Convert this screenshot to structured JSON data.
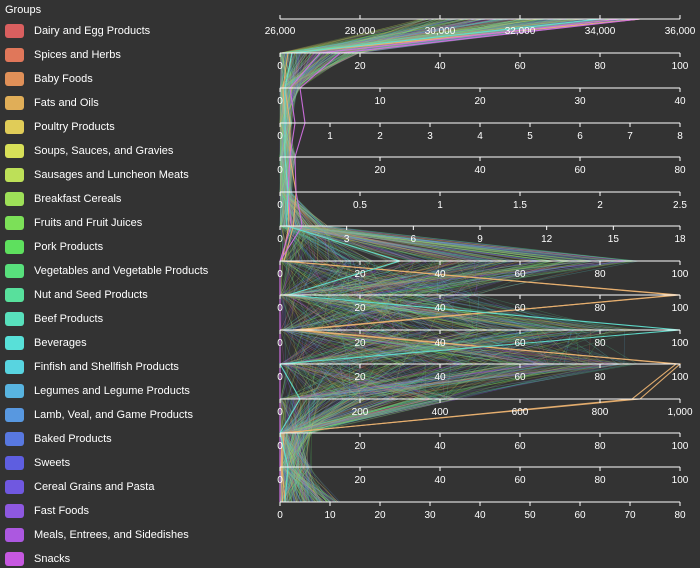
{
  "legend": {
    "title": "Groups",
    "items": [
      {
        "label": "Dairy and Egg Products",
        "color": "#d95f5f"
      },
      {
        "label": "Spices and Herbs",
        "color": "#e0775a"
      },
      {
        "label": "Baby Foods",
        "color": "#e09058"
      },
      {
        "label": "Fats and Oils",
        "color": "#e0ae58"
      },
      {
        "label": "Poultry Products",
        "color": "#e0cc58"
      },
      {
        "label": "Soups, Sauces, and Gravies",
        "color": "#d8e058"
      },
      {
        "label": "Sausages and Luncheon Meats",
        "color": "#bde058"
      },
      {
        "label": "Breakfast Cereals",
        "color": "#9ee058"
      },
      {
        "label": "Fruits and Fruit Juices",
        "color": "#7ce058"
      },
      {
        "label": "Pork Products",
        "color": "#5ee05e"
      },
      {
        "label": "Vegetables and Vegetable Products",
        "color": "#58e07c"
      },
      {
        "label": "Nut and Seed Products",
        "color": "#58e09c"
      },
      {
        "label": "Beef Products",
        "color": "#58e0bc"
      },
      {
        "label": "Beverages",
        "color": "#58e0d8"
      },
      {
        "label": "Finfish and Shellfish Products",
        "color": "#58d4e0"
      },
      {
        "label": "Legumes and Legume Products",
        "color": "#58b4e0"
      },
      {
        "label": "Lamb, Veal, and Game Products",
        "color": "#5898e0"
      },
      {
        "label": "Baked Products",
        "color": "#5878e0"
      },
      {
        "label": "Sweets",
        "color": "#5e5ee0"
      },
      {
        "label": "Cereal Grains and Pasta",
        "color": "#7058e0"
      },
      {
        "label": "Fast Foods",
        "color": "#8e58e0"
      },
      {
        "label": "Meals, Entrees, and Sidedishes",
        "color": "#ac58e0"
      },
      {
        "label": "Snacks",
        "color": "#c658e0"
      }
    ]
  },
  "chart_data": {
    "type": "parallel_coordinates",
    "orientation": "horizontal_axes",
    "axes": [
      {
        "domain": [
          26000,
          36000
        ],
        "ticks": [
          26000,
          28000,
          30000,
          32000,
          34000,
          36000
        ],
        "tick_labels": [
          "26,000",
          "28,000",
          "30,000",
          "32,000",
          "34,000",
          "36,000"
        ]
      },
      {
        "domain": [
          0,
          100
        ],
        "ticks": [
          0,
          20,
          40,
          60,
          80,
          100
        ],
        "tick_labels": [
          "0",
          "20",
          "40",
          "60",
          "80",
          "100"
        ]
      },
      {
        "domain": [
          0,
          40
        ],
        "ticks": [
          0,
          10,
          20,
          30,
          40
        ],
        "tick_labels": [
          "0",
          "10",
          "20",
          "30",
          "40"
        ]
      },
      {
        "domain": [
          0,
          8
        ],
        "ticks": [
          0,
          1,
          2,
          3,
          4,
          5,
          6,
          7,
          8
        ],
        "tick_labels": [
          "0",
          "1",
          "2",
          "3",
          "4",
          "5",
          "6",
          "7",
          "8"
        ]
      },
      {
        "domain": [
          0,
          80
        ],
        "ticks": [
          0,
          20,
          40,
          60,
          80
        ],
        "tick_labels": [
          "0",
          "20",
          "40",
          "60",
          "80"
        ]
      },
      {
        "domain": [
          0,
          2.5
        ],
        "ticks": [
          0,
          0.5,
          1,
          1.5,
          2,
          2.5
        ],
        "tick_labels": [
          "0",
          "0.5",
          "1",
          "1.5",
          "2",
          "2.5"
        ]
      },
      {
        "domain": [
          0,
          18
        ],
        "ticks": [
          0,
          3,
          6,
          9,
          12,
          15,
          18
        ],
        "tick_labels": [
          "0",
          "3",
          "6",
          "9",
          "12",
          "15",
          "18"
        ]
      },
      {
        "domain": [
          0,
          100
        ],
        "ticks": [
          0,
          20,
          40,
          60,
          80,
          100
        ],
        "tick_labels": [
          "0",
          "20",
          "40",
          "60",
          "80",
          "100"
        ]
      },
      {
        "domain": [
          0,
          100
        ],
        "ticks": [
          0,
          20,
          40,
          60,
          80,
          100
        ],
        "tick_labels": [
          "0",
          "20",
          "40",
          "60",
          "80",
          "100"
        ]
      },
      {
        "domain": [
          0,
          100
        ],
        "ticks": [
          0,
          20,
          40,
          60,
          80,
          100
        ],
        "tick_labels": [
          "0",
          "20",
          "40",
          "60",
          "80",
          "100"
        ]
      },
      {
        "domain": [
          0,
          100
        ],
        "ticks": [
          0,
          20,
          40,
          60,
          80,
          100
        ],
        "tick_labels": [
          "0",
          "20",
          "40",
          "60",
          "80",
          "100"
        ]
      },
      {
        "domain": [
          0,
          1000
        ],
        "ticks": [
          0,
          200,
          400,
          600,
          800,
          1000
        ],
        "tick_labels": [
          "0",
          "200",
          "400",
          "600",
          "800",
          "1,000"
        ]
      },
      {
        "domain": [
          0,
          100
        ],
        "ticks": [
          0,
          20,
          40,
          60,
          80,
          100
        ],
        "tick_labels": [
          "0",
          "20",
          "40",
          "60",
          "80",
          "100"
        ]
      },
      {
        "domain": [
          0,
          100
        ],
        "ticks": [
          0,
          20,
          40,
          60,
          80,
          100
        ],
        "tick_labels": [
          "0",
          "20",
          "40",
          "60",
          "80",
          "100"
        ]
      },
      {
        "domain": [
          0,
          80
        ],
        "ticks": [
          0,
          10,
          20,
          30,
          40,
          50,
          60,
          70,
          80
        ],
        "tick_labels": [
          "0",
          "10",
          "20",
          "30",
          "40",
          "50",
          "60",
          "70",
          "80"
        ]
      }
    ],
    "highlighted_series": [
      {
        "color": "#e8b070",
        "values": [
          35000,
          2,
          0.3,
          0.1,
          1,
          0.05,
          0.4,
          0.5,
          100,
          3,
          100,
          900,
          0.5,
          0.3,
          0.5
        ]
      },
      {
        "color": "#e8b070",
        "values": [
          35000,
          3,
          0.5,
          0.2,
          2,
          0.1,
          0.6,
          1,
          99,
          5,
          99,
          880,
          1,
          0.5,
          1
        ]
      },
      {
        "color": "#d070e0",
        "values": [
          35000,
          15,
          2,
          0.5,
          3,
          0.1,
          1,
          0,
          0,
          0,
          0,
          0,
          0,
          0,
          0
        ]
      },
      {
        "color": "#d070e0",
        "values": [
          34500,
          10,
          1,
          0.3,
          2,
          0.05,
          0.5,
          0,
          0,
          0,
          0,
          0,
          0,
          0,
          0
        ]
      },
      {
        "color": "#60e0d0",
        "values": [
          34000,
          3,
          0.5,
          0.1,
          1,
          0.05,
          0.3,
          30,
          2,
          100,
          0,
          50,
          0,
          2,
          1
        ]
      }
    ],
    "xlabel": "",
    "ylabel": ""
  }
}
